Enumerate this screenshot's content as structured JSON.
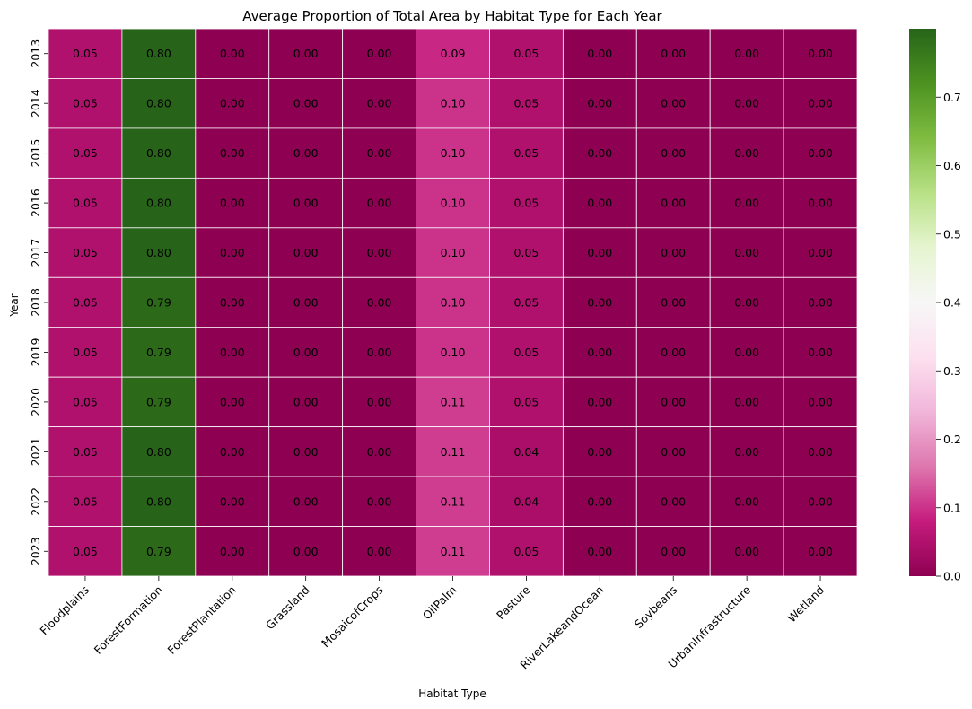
{
  "chart_data": {
    "type": "heatmap",
    "title": "Average Proportion of Total Area by Habitat Type for Each Year",
    "xlabel": "Habitat Type",
    "ylabel": "Year",
    "x_categories": [
      "Floodplains",
      "ForestFormation",
      "ForestPlantation",
      "Grassland",
      "MosaicofCrops",
      "OilPalm",
      "Pasture",
      "RiverLakeandOcean",
      "Soybeans",
      "UrbanInfrastructure",
      "Wetland"
    ],
    "y_categories": [
      "2013",
      "2014",
      "2015",
      "2016",
      "2017",
      "2018",
      "2019",
      "2020",
      "2021",
      "2022",
      "2023"
    ],
    "values": [
      [
        0.05,
        0.8,
        0.0,
        0.0,
        0.0,
        0.09,
        0.05,
        0.0,
        0.0,
        0.0,
        0.0
      ],
      [
        0.05,
        0.8,
        0.0,
        0.0,
        0.0,
        0.1,
        0.05,
        0.0,
        0.0,
        0.0,
        0.0
      ],
      [
        0.05,
        0.8,
        0.0,
        0.0,
        0.0,
        0.1,
        0.05,
        0.0,
        0.0,
        0.0,
        0.0
      ],
      [
        0.05,
        0.8,
        0.0,
        0.0,
        0.0,
        0.1,
        0.05,
        0.0,
        0.0,
        0.0,
        0.0
      ],
      [
        0.05,
        0.8,
        0.0,
        0.0,
        0.0,
        0.1,
        0.05,
        0.0,
        0.0,
        0.0,
        0.0
      ],
      [
        0.05,
        0.79,
        0.0,
        0.0,
        0.0,
        0.1,
        0.05,
        0.0,
        0.0,
        0.0,
        0.0
      ],
      [
        0.05,
        0.79,
        0.0,
        0.0,
        0.0,
        0.1,
        0.05,
        0.0,
        0.0,
        0.0,
        0.0
      ],
      [
        0.05,
        0.79,
        0.0,
        0.0,
        0.0,
        0.11,
        0.05,
        0.0,
        0.0,
        0.0,
        0.0
      ],
      [
        0.05,
        0.8,
        0.0,
        0.0,
        0.0,
        0.11,
        0.04,
        0.0,
        0.0,
        0.0,
        0.0
      ],
      [
        0.05,
        0.8,
        0.0,
        0.0,
        0.0,
        0.11,
        0.04,
        0.0,
        0.0,
        0.0,
        0.0
      ],
      [
        0.05,
        0.79,
        0.0,
        0.0,
        0.0,
        0.11,
        0.05,
        0.0,
        0.0,
        0.0,
        0.0
      ]
    ],
    "value_format": "2 decimals",
    "colormap": "PiYG",
    "colormap_stops": [
      "#8e0152",
      "#c51b7d",
      "#de77ae",
      "#f1b6da",
      "#fde0ef",
      "#f7f7f7",
      "#e6f5d0",
      "#b8e186",
      "#7fbc41",
      "#4d9221",
      "#276419"
    ],
    "vmin": 0.0,
    "vmax": 0.8,
    "colorbar_ticks": [
      "0.0",
      "0.1",
      "0.2",
      "0.3",
      "0.4",
      "0.5",
      "0.6",
      "0.7"
    ],
    "annotation_color": "#ffffff",
    "grid_line_color": "#ffffff"
  }
}
